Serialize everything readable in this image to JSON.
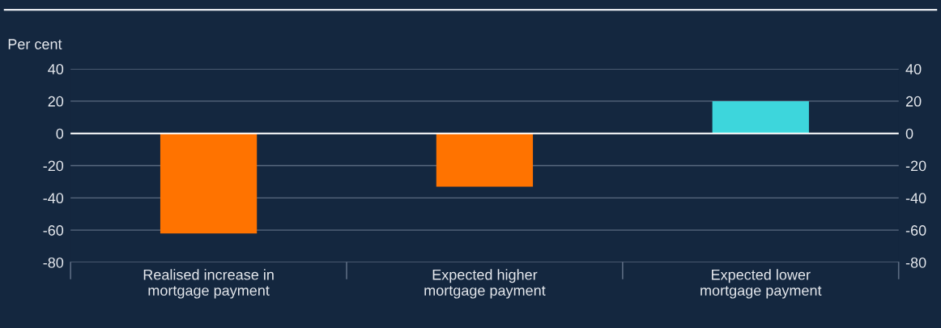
{
  "chart_data": {
    "type": "bar",
    "ylabel": "Per cent",
    "categories": [
      "Realised increase in\nmortgage payment",
      "Expected higher\nmortgage payment",
      "Expected lower\nmortgage payment"
    ],
    "values": [
      -62,
      -33,
      20
    ],
    "colors": [
      "#ff7300",
      "#ff7300",
      "#3dd6dc"
    ],
    "ylim": [
      -80,
      40
    ],
    "yticks": [
      -80,
      -60,
      -40,
      -20,
      0,
      20,
      40
    ],
    "y2lim": [
      -80,
      40
    ],
    "y2ticks": [
      -80,
      -60,
      -40,
      -20,
      0,
      20,
      40
    ],
    "ref_lines": [
      {
        "axis": "y",
        "value": 0,
        "color": "#ffffff"
      }
    ],
    "grid": "y"
  }
}
